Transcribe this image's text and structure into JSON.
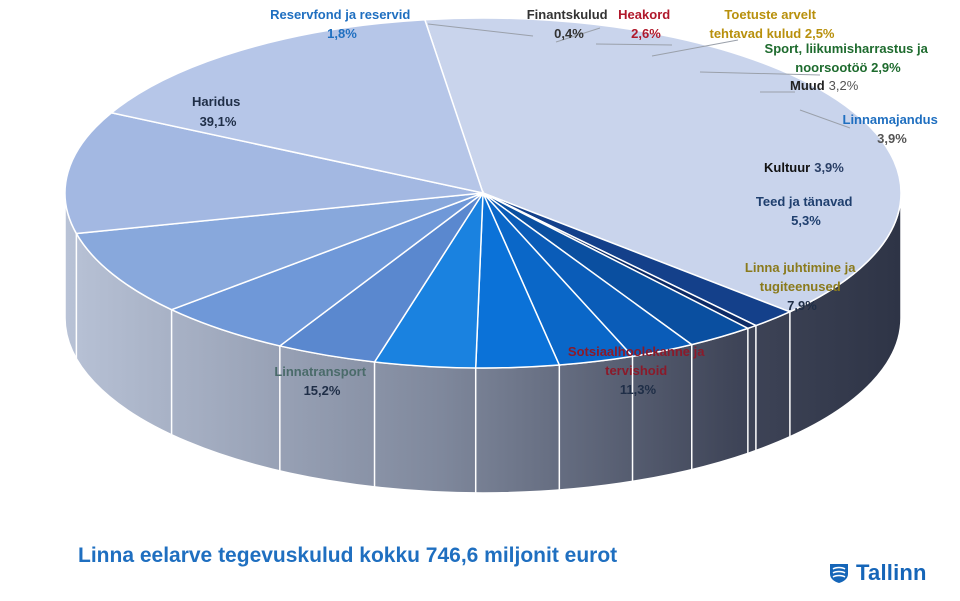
{
  "chart_data": {
    "type": "pie",
    "title": "Linna eelarve tegevuskulud kokku 746,6 miljonit eurot",
    "slices": [
      {
        "name": "Haridus",
        "value": 39.1,
        "label": "39,1%",
        "color": "#c9d4ec",
        "label_color": "#1f2e47"
      },
      {
        "name": "Reservfond ja reservid",
        "value": 1.8,
        "label": "1,8%",
        "color": "#14408a",
        "label_color": "#1f6fc0"
      },
      {
        "name": "Finantskulud",
        "value": 0.4,
        "label": "0,4%",
        "color": "#0b2a66",
        "label_color": "#333333"
      },
      {
        "name": "Heakord",
        "value": 2.6,
        "label": "2,6%",
        "color": "#0a4fa0",
        "label_color": "#b0182b"
      },
      {
        "name": "Toetuste arvelt tehtavad kulud",
        "value": 2.5,
        "label": "2,5%",
        "color": "#0a5cb8",
        "label_color": "#b8900c"
      },
      {
        "name": "Sport, liikumisharrastus ja noorsootöö",
        "value": 2.9,
        "label": "2,9%",
        "color": "#0a67c8",
        "label_color": "#1e6b2e"
      },
      {
        "name": "Muud",
        "value": 3.2,
        "label": "3,2%",
        "color": "#0b72d8",
        "label_color": "#222222"
      },
      {
        "name": "Linnamajandus",
        "value": 3.9,
        "label": "3,9%",
        "color": "#1a82e0",
        "label_color": "#1f6fc0"
      },
      {
        "name": "Kultuur",
        "value": 3.9,
        "label": "3,9%",
        "color": "#5a88cf",
        "label_color": "#111111"
      },
      {
        "name": "Teed ja tänavad",
        "value": 5.3,
        "label": "5,3%",
        "color": "#6f98d8",
        "label_color": "#1f3f6e"
      },
      {
        "name": "Linna juhtimine ja tugiteenused",
        "value": 7.9,
        "label": "7,9%",
        "color": "#88a8dc",
        "label_color": "#8a7a1c"
      },
      {
        "name": "Sotsiaalhoolekanne ja tervishoid",
        "value": 11.3,
        "label": "11,3%",
        "color": "#a3b8e2",
        "label_color": "#8b1a2a"
      },
      {
        "name": "Linnatransport",
        "value": 15.2,
        "label": "15,2%",
        "color": "#b6c6e8",
        "label_color": "#4a6b6a"
      }
    ]
  },
  "logo": {
    "text": "Tallinn"
  }
}
